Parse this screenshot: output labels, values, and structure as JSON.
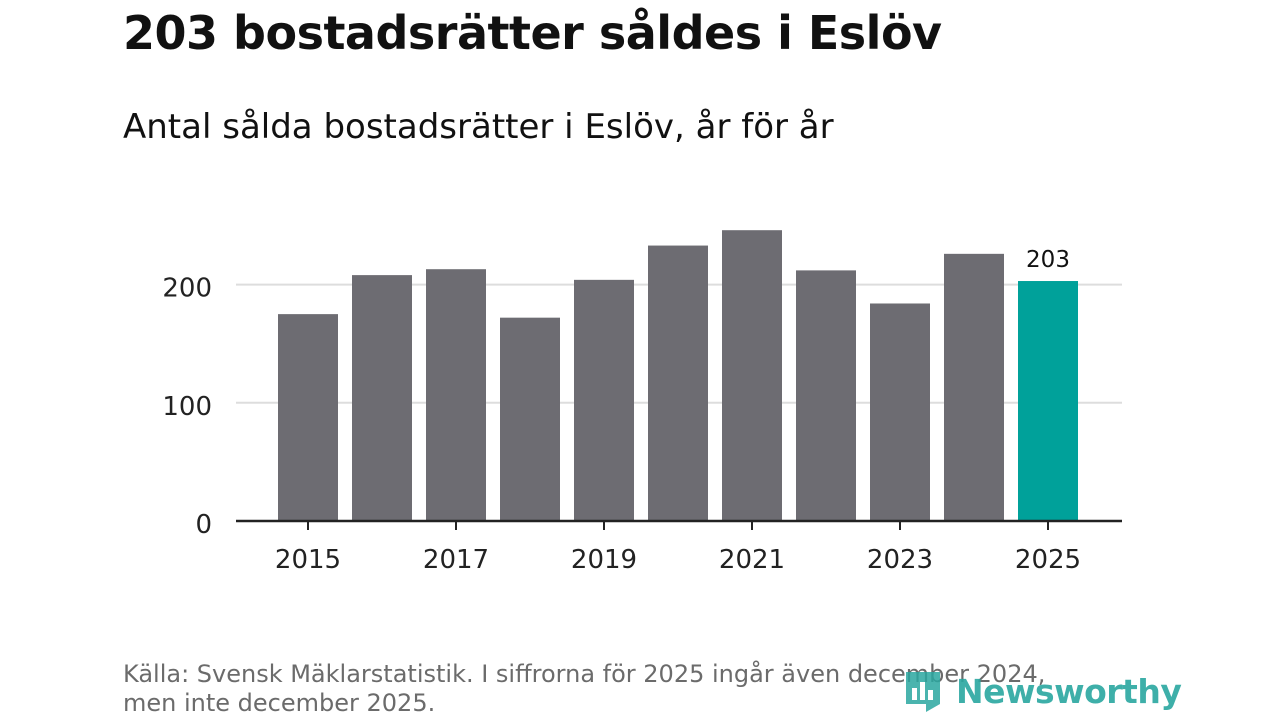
{
  "header": {
    "title": "203 bostadsrätter såldes i Eslöv",
    "subtitle": "Antal sålda bostadsrätter i Eslöv, år för år"
  },
  "chart_data": {
    "type": "bar",
    "categories": [
      "2015",
      "2016",
      "2017",
      "2018",
      "2019",
      "2020",
      "2021",
      "2022",
      "2023",
      "2024",
      "2025"
    ],
    "values": [
      175,
      208,
      213,
      172,
      204,
      233,
      246,
      212,
      184,
      226,
      203
    ],
    "x_tick_labels": [
      "2015",
      "2017",
      "2019",
      "2021",
      "2023",
      "2025"
    ],
    "y_ticks": [
      0,
      100,
      200
    ],
    "ylim": [
      0,
      280
    ],
    "highlight_index": 10,
    "highlight_label": "203",
    "grid": true,
    "colors": {
      "bar": "#6d6c72",
      "highlight": "#00a19a",
      "grid": "#dddddd",
      "axis": "#222222"
    }
  },
  "footer": {
    "source_line1": "Källa: Svensk Mäklarstatistik. I siffrorna för 2025 ingår även december 2024,",
    "source_line2": "men inte december 2025.",
    "brand": "Newsworthy",
    "brand_icon": "newsworthy-logo-icon"
  }
}
